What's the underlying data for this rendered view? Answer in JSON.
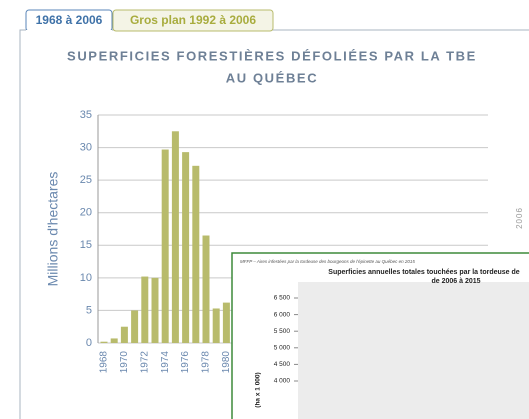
{
  "tabs": [
    "1968 à 2006",
    "Gros plan 1992 à 2006"
  ],
  "chart_data": [
    {
      "type": "bar",
      "title": [
        "SUPERFICIES FORESTIÈRES DÉFOLIÉES PAR LA TBE",
        "AU QUÉBEC"
      ],
      "y_label": "Millions d'hectares",
      "side_note": "2006",
      "categories": [
        "1968",
        null,
        "1970",
        null,
        "1972",
        null,
        "1974",
        null,
        "1976",
        null,
        "1978",
        null,
        "1980"
      ],
      "values": [
        0.2,
        0.7,
        2.5,
        5,
        10.2,
        10,
        29.7,
        32.5,
        29.3,
        27.2,
        16.5,
        5.3,
        6.2
      ],
      "color": "#b8bb6c",
      "ylim": [
        0,
        35
      ],
      "yticks": [
        0,
        5,
        10,
        15,
        20,
        25,
        30,
        35
      ],
      "grid": true
    },
    {
      "type": "bar",
      "header": "MFFP – Aires infestées par la tordeuse des bourgeons de l'épinette au Québec en 2015",
      "title": [
        "Superficies annuelles totales touchées par la tordeuse de",
        "de 2006 à 2015"
      ],
      "y_label": "(ha x 1 000)",
      "ylim": [
        4000,
        6500
      ],
      "yticks": [
        {
          "value": 4000,
          "label": "4 000"
        },
        {
          "value": 4500,
          "label": "4 500"
        },
        {
          "value": 5000,
          "label": "5 000"
        },
        {
          "value": 5500,
          "label": "5 500"
        },
        {
          "value": 6000,
          "label": "6 000"
        },
        {
          "value": 6500,
          "label": "6 500"
        }
      ],
      "grid": false
    }
  ]
}
